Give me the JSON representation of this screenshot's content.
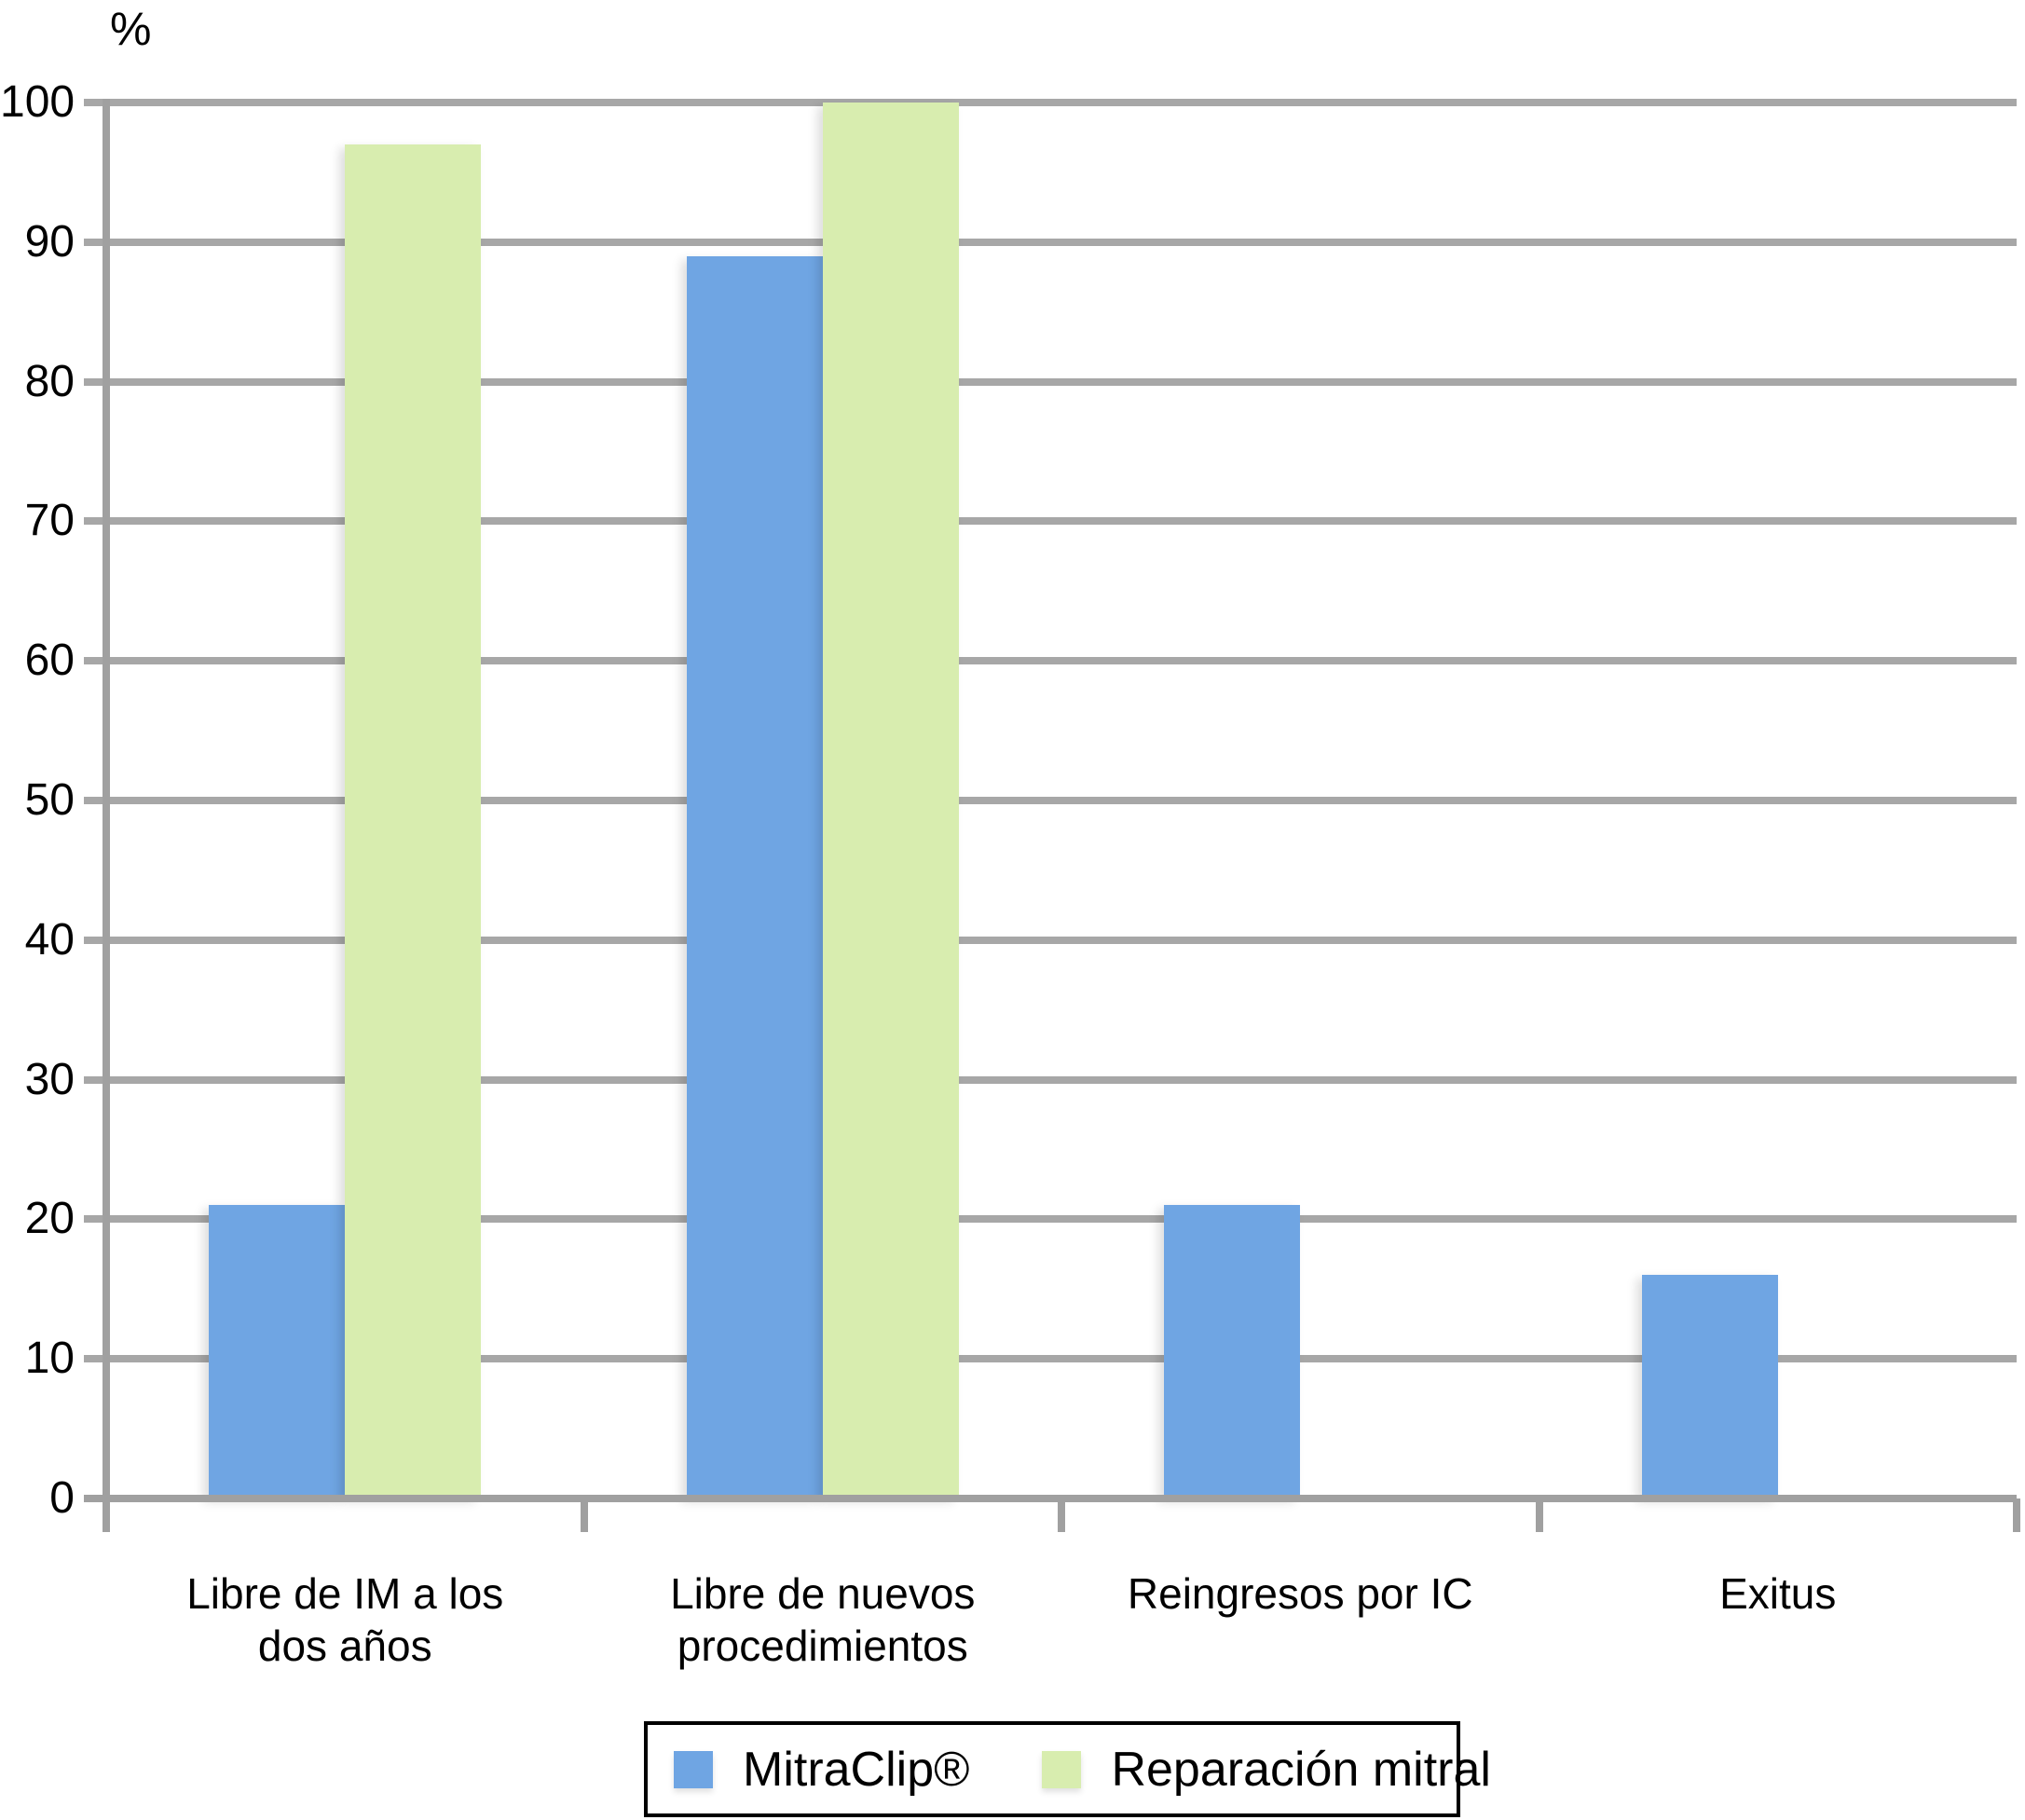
{
  "chart_data": {
    "type": "bar",
    "title": "",
    "ylabel": "%",
    "xlabel": "",
    "categories": [
      {
        "lines": [
          "Libre de IM a los",
          "dos años"
        ]
      },
      {
        "lines": [
          "Libre de nuevos",
          "procedimientos"
        ]
      },
      {
        "lines": [
          "Reingresos por IC"
        ]
      },
      {
        "lines": [
          "Exitus"
        ]
      }
    ],
    "series": [
      {
        "name": "MitraClip®",
        "color": "#6FA5E3",
        "values": [
          21,
          89,
          21,
          16
        ]
      },
      {
        "name": "Reparación mitral",
        "color": "#D8EDAF",
        "values": [
          97,
          100,
          0,
          0
        ]
      }
    ],
    "ylim": [
      0,
      100
    ],
    "yticks": [
      0,
      10,
      20,
      30,
      40,
      50,
      60,
      70,
      80,
      90,
      100
    ],
    "grid": true,
    "legend_position": "bottom"
  },
  "colors": {
    "mitraclip_blue": "#6FA5E3",
    "reparacion_green": "#D8EDAF",
    "gridline_gray": "#A7A7A7",
    "axis_gray": "#A0A0A0",
    "text": "#000000",
    "background": "#FFFFFF"
  }
}
